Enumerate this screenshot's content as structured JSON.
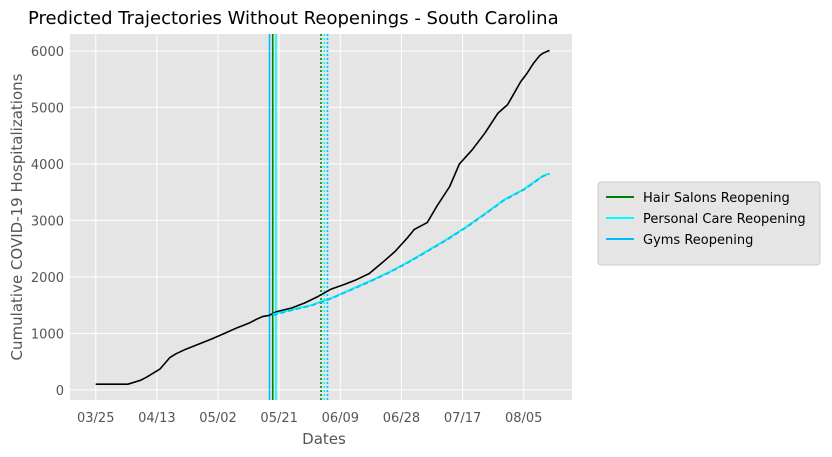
{
  "chart_data": {
    "type": "line",
    "title": "Predicted Trajectories Without Reopenings - South Carolina",
    "xlabel": "Dates",
    "ylabel": "Cumulative COVID-19 Hospitalizations",
    "x_tick_labels": [
      "03/25",
      "04/13",
      "05/02",
      "05/21",
      "06/09",
      "06/28",
      "07/17",
      "08/05"
    ],
    "y_tick_labels": [
      "0",
      "1000",
      "2000",
      "3000",
      "4000",
      "5000",
      "6000"
    ],
    "y_ticks": [
      0,
      1000,
      2000,
      3000,
      4000,
      5000,
      6000
    ],
    "xlim": [
      "2020-03-17",
      "2020-08-20"
    ],
    "ylim": [
      -180,
      6300
    ],
    "grid": true,
    "legend_position": "right",
    "background_color": "#e5e5e5",
    "series": [
      {
        "color": "#000000",
        "x": [
          "2020-03-25",
          "2020-03-28",
          "2020-04-01",
          "2020-04-04",
          "2020-04-08",
          "2020-04-10",
          "2020-04-14",
          "2020-04-17",
          "2020-04-19",
          "2020-04-22",
          "2020-04-26",
          "2020-04-30",
          "2020-05-04",
          "2020-05-08",
          "2020-05-12",
          "2020-05-14",
          "2020-05-16",
          "2020-05-18",
          "2020-05-20",
          "2020-05-25",
          "2020-05-29",
          "2020-06-02",
          "2020-06-06",
          "2020-06-10",
          "2020-06-14",
          "2020-06-18",
          "2020-06-22",
          "2020-06-26",
          "2020-06-30",
          "2020-07-02",
          "2020-07-06",
          "2020-07-09",
          "2020-07-13",
          "2020-07-16",
          "2020-07-20",
          "2020-07-24",
          "2020-07-28",
          "2020-07-31",
          "2020-08-02",
          "2020-08-04",
          "2020-08-06",
          "2020-08-08",
          "2020-08-10",
          "2020-08-11",
          "2020-08-13"
        ],
        "y": [
          100,
          100,
          100,
          100,
          170,
          230,
          370,
          570,
          640,
          720,
          810,
          900,
          1000,
          1100,
          1190,
          1250,
          1300,
          1320,
          1380,
          1450,
          1540,
          1650,
          1780,
          1860,
          1950,
          2060,
          2250,
          2450,
          2700,
          2840,
          2960,
          3250,
          3600,
          4000,
          4250,
          4550,
          4900,
          5050,
          5250,
          5450,
          5600,
          5780,
          5920,
          5960,
          6010
        ]
      },
      {
        "name": "Hair Salons Reopening",
        "color": "#008000",
        "x": [
          "2020-05-19",
          "2020-05-25",
          "2020-05-31",
          "2020-06-06",
          "2020-06-12",
          "2020-06-18",
          "2020-06-24",
          "2020-06-30",
          "2020-07-06",
          "2020-07-12",
          "2020-07-18",
          "2020-07-24",
          "2020-07-30",
          "2020-08-05",
          "2020-08-11",
          "2020-08-13"
        ],
        "y": [
          1340,
          1420,
          1500,
          1620,
          1770,
          1920,
          2080,
          2260,
          2460,
          2660,
          2880,
          3120,
          3370,
          3550,
          3790,
          3830
        ]
      },
      {
        "name": "Personal Care Reopening",
        "color": "#00ffff",
        "x": [
          "2020-05-19",
          "2020-05-25",
          "2020-05-31",
          "2020-06-06",
          "2020-06-12",
          "2020-06-18",
          "2020-06-24",
          "2020-06-30",
          "2020-07-06",
          "2020-07-12",
          "2020-07-18",
          "2020-07-24",
          "2020-07-30",
          "2020-08-05",
          "2020-08-11",
          "2020-08-13"
        ],
        "y": [
          1340,
          1420,
          1500,
          1620,
          1770,
          1920,
          2080,
          2260,
          2460,
          2660,
          2880,
          3120,
          3370,
          3550,
          3790,
          3830
        ]
      },
      {
        "name": "Gyms Reopening",
        "color": "#00bfff",
        "x": [
          "2020-05-19",
          "2020-05-25",
          "2020-05-31",
          "2020-06-06",
          "2020-06-12",
          "2020-06-18",
          "2020-06-24",
          "2020-06-30",
          "2020-07-06",
          "2020-07-12",
          "2020-07-18",
          "2020-07-24",
          "2020-07-30",
          "2020-08-05",
          "2020-08-11",
          "2020-08-13"
        ],
        "y": [
          1320,
          1410,
          1490,
          1610,
          1760,
          1910,
          2070,
          2250,
          2450,
          2650,
          2870,
          3110,
          3360,
          3540,
          3780,
          3820
        ]
      }
    ],
    "reference_lines": [
      {
        "x": "2020-05-19",
        "color": "#008000",
        "style": "solid"
      },
      {
        "x": "2020-05-20",
        "color": "#00ffff",
        "style": "solid"
      },
      {
        "x": "2020-05-18",
        "color": "#00bfff",
        "style": "solid"
      },
      {
        "x": "2020-06-03",
        "color": "#008000",
        "style": "dotted"
      },
      {
        "x": "2020-06-04",
        "color": "#00ffff",
        "style": "dotted"
      },
      {
        "x": "2020-06-05",
        "color": "#00bfff",
        "style": "dotted"
      }
    ]
  }
}
